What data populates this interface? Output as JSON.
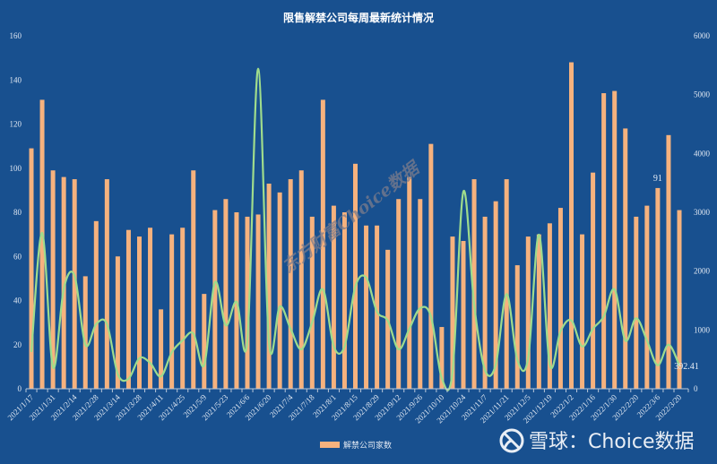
{
  "chart_data": {
    "type": "bar",
    "title": "限售解禁公司每周最新统计情况",
    "categories": [
      "2021/1/17",
      "2021/1/24",
      "2021/1/31",
      "2021/2/7",
      "2021/2/14",
      "2021/2/21",
      "2021/2/28",
      "2021/3/7",
      "2021/3/14",
      "2021/3/21",
      "2021/3/28",
      "2021/4/4",
      "2021/4/11",
      "2021/4/18",
      "2021/4/25",
      "2021/5/2",
      "2021/5/9",
      "2021/5/16",
      "2021/5/23",
      "2021/5/30",
      "2021/6/6",
      "2021/6/13",
      "2021/6/20",
      "2021/6/27",
      "2021/7/4",
      "2021/7/11",
      "2021/7/18",
      "2021/7/25",
      "2021/8/1",
      "2021/8/8",
      "2021/8/15",
      "2021/8/22",
      "2021/8/29",
      "2021/9/5",
      "2021/9/12",
      "2021/9/19",
      "2021/9/26",
      "2021/10/3",
      "2021/10/10",
      "2021/10/17",
      "2021/10/24",
      "2021/10/31",
      "2021/11/7",
      "2021/11/14",
      "2021/11/21",
      "2021/11/28",
      "2021/12/5",
      "2021/12/12",
      "2021/12/19",
      "2021/12/26",
      "2022/1/2",
      "2022/1/9",
      "2022/1/16",
      "2022/1/23",
      "2022/1/30",
      "2022/2/13",
      "2022/2/20",
      "2022/2/27",
      "2022/3/6",
      "2022/3/13",
      "2022/3/20"
    ],
    "tick_label_every": 2,
    "series": [
      {
        "name": "解禁公司家数",
        "type": "bar",
        "axis": "left",
        "color": "#f6b27e",
        "values": [
          109,
          131,
          99,
          96,
          95,
          51,
          76,
          95,
          60,
          72,
          69,
          73,
          36,
          70,
          73,
          99,
          43,
          81,
          86,
          80,
          78,
          79,
          93,
          89,
          95,
          99,
          78,
          131,
          83,
          80,
          102,
          74,
          74,
          63,
          86,
          96,
          86,
          111,
          28,
          69,
          67,
          95,
          78,
          85,
          95,
          56,
          69,
          70,
          75,
          82,
          148,
          70,
          98,
          134,
          135,
          118,
          78,
          83,
          91,
          115,
          81
        ]
      },
      {
        "type": "line",
        "axis": "right",
        "smooth": true,
        "color": "#9fdc8c",
        "values": [
          625,
          2650,
          365,
          1700,
          1920,
          750,
          1100,
          1100,
          250,
          170,
          520,
          440,
          210,
          620,
          820,
          940,
          400,
          1810,
          1080,
          1480,
          820,
          5440,
          790,
          1400,
          1020,
          670,
          1130,
          1690,
          720,
          720,
          1740,
          1890,
          1310,
          1160,
          670,
          1020,
          1370,
          1230,
          180,
          290,
          3350,
          1430,
          320,
          410,
          1610,
          490,
          520,
          2620,
          410,
          980,
          1160,
          720,
          1020,
          1230,
          1690,
          820,
          1200,
          820,
          400,
          750,
          392.41
        ]
      }
    ],
    "y_left": {
      "min": 0,
      "max": 160,
      "ticks": [
        "0",
        "20",
        "40",
        "60",
        "80",
        "100",
        "120",
        "140",
        "160"
      ]
    },
    "y_right": {
      "min": 0,
      "max": 6000,
      "ticks": [
        "0",
        "1000",
        "2000",
        "3000",
        "4000",
        "5000",
        "6000"
      ]
    },
    "data_labels": [
      {
        "series": 0,
        "index": 58,
        "text": "91"
      },
      {
        "series": 1,
        "index": 60,
        "text": "392.41"
      }
    ],
    "grid": false,
    "legend": {
      "position": "bottom",
      "entries": [
        "解禁公司家数"
      ]
    },
    "background": "#18508f"
  },
  "watermark": "东方财富Choice数据",
  "brand": {
    "name": "雪球",
    "separator": "：",
    "suffix": "Choice数据"
  }
}
